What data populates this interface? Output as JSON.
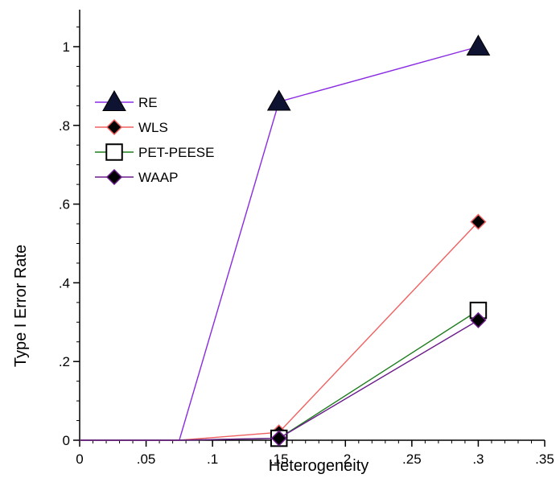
{
  "chart_data": {
    "type": "line",
    "title": "",
    "xlabel": "Heterogeneity",
    "ylabel": "Type I Error Rate",
    "xlim": [
      0,
      0.35
    ],
    "ylim": [
      0,
      1.1
    ],
    "x_ticks": [
      0,
      0.05,
      0.1,
      0.15,
      0.2,
      0.25,
      0.3,
      0.35
    ],
    "x_tick_labels": [
      "0",
      ".05",
      ".1",
      ".15",
      ".2",
      ".25",
      ".3",
      ".35"
    ],
    "y_ticks": [
      0,
      0.2,
      0.4,
      0.6,
      0.8,
      1
    ],
    "y_tick_labels": [
      "0",
      ".2",
      ".4",
      ".6",
      ".8",
      "1"
    ],
    "grid": false,
    "legend_position": "upper-left",
    "series": [
      {
        "name": "RE",
        "color": "#8a2be2",
        "marker": "triangle",
        "x": [
          0,
          0.075,
          0.15,
          0.3
        ],
        "y": [
          0,
          0,
          0.86,
          1.0
        ]
      },
      {
        "name": "WLS",
        "color": "#f06060",
        "marker": "diamond",
        "x": [
          0,
          0.075,
          0.15,
          0.3
        ],
        "y": [
          0,
          0,
          0.02,
          0.555
        ]
      },
      {
        "name": "PET-PEESE",
        "color": "#1e7d1e",
        "marker": "square",
        "x": [
          0,
          0.075,
          0.15,
          0.3
        ],
        "y": [
          0,
          0,
          0.005,
          0.33
        ]
      },
      {
        "name": "WAAP",
        "color": "#6a1b8a",
        "marker": "diamond",
        "x": [
          0,
          0.075,
          0.15,
          0.3
        ],
        "y": [
          0,
          0,
          0.005,
          0.305
        ]
      }
    ]
  }
}
